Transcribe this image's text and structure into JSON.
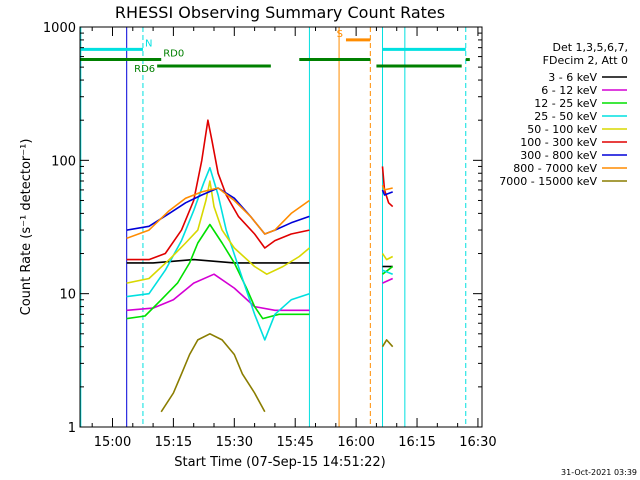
{
  "chart_data": {
    "type": "line",
    "title": "RHESSI Observing Summary Count Rates",
    "xlabel": "Start Time (07-Sep-15 14:51:22)",
    "ylabel": "Count Rate (s⁻¹ detector⁻¹)",
    "yscale": "log",
    "ylim": [
      1,
      1000
    ],
    "y_ticks": [
      {
        "value": 1,
        "label": "1"
      },
      {
        "value": 10,
        "label": "10"
      },
      {
        "value": 100,
        "label": "100"
      },
      {
        "value": 1000,
        "label": "1000"
      }
    ],
    "x_range_minutes": [
      -8,
      91
    ],
    "x_ticks": [
      {
        "minute": 0,
        "label": "15:00"
      },
      {
        "minute": 15,
        "label": "15:15"
      },
      {
        "minute": 30,
        "label": "15:30"
      },
      {
        "minute": 45,
        "label": "15:45"
      },
      {
        "minute": 60,
        "label": "16:00"
      },
      {
        "minute": 75,
        "label": "16:15"
      },
      {
        "minute": 90,
        "label": "16:30"
      }
    ],
    "legend_header": [
      "Det 1,3,5,6,7,",
      "FDecim 2, Att 0"
    ],
    "series": [
      {
        "name": "3 - 6 keV",
        "color": "#000000",
        "segments": [
          {
            "t": [
              3.5,
              10,
              20,
              30,
              40,
              48.5
            ],
            "v": [
              17,
              17,
              18,
              17,
              17,
              17
            ]
          },
          {
            "t": [
              66.5,
              69
            ],
            "v": [
              16,
              16
            ]
          }
        ]
      },
      {
        "name": "6 - 12 keV",
        "color": "#d400d4",
        "segments": [
          {
            "t": [
              3.5,
              10,
              15,
              20,
              25,
              30,
              35,
              40,
              48.5
            ],
            "v": [
              7.5,
              7.8,
              9,
              12,
              14,
              11,
              8,
              7.5,
              7.5
            ]
          },
          {
            "t": [
              66.5,
              69
            ],
            "v": [
              12,
              13
            ]
          }
        ]
      },
      {
        "name": "12 - 25 keV",
        "color": "#00e000",
        "segments": [
          {
            "t": [
              3.5,
              8,
              12,
              16,
              19,
              21,
              24,
              27,
              30,
              33,
              35,
              37,
              41,
              45,
              48.5
            ],
            "v": [
              6.5,
              6.8,
              9,
              12,
              17,
              24,
              33,
              24,
              17,
              11,
              8,
              6.5,
              7,
              7,
              7
            ]
          },
          {
            "t": [
              66.5,
              69
            ],
            "v": [
              14,
              16
            ]
          }
        ]
      },
      {
        "name": "25 - 50 keV",
        "color": "#00e0e0",
        "segments": [
          {
            "t": [
              3.5,
              9,
              13,
              17,
              20,
              22.5,
              24,
              26,
              28,
              32,
              35,
              37.5,
              40,
              44,
              48.5
            ],
            "v": [
              9.5,
              10,
              15,
              25,
              42,
              68,
              88,
              55,
              30,
              13,
              7,
              4.5,
              7,
              9,
              10
            ]
          },
          {
            "t": [
              66.5,
              69
            ],
            "v": [
              15,
              14
            ]
          }
        ]
      },
      {
        "name": "50 - 100 keV",
        "color": "#d8d800",
        "segments": [
          {
            "t": [
              3.5,
              9,
              14,
              18,
              21,
              23,
              24,
              25,
              27,
              30,
              35,
              38,
              42,
              46,
              48.5
            ],
            "v": [
              12,
              13,
              18,
              24,
              30,
              50,
              70,
              45,
              30,
              22,
              16,
              14,
              16,
              19,
              22
            ]
          },
          {
            "t": [
              66.5,
              67.5,
              69
            ],
            "v": [
              20,
              18,
              19
            ]
          }
        ]
      },
      {
        "name": "100 - 300 keV",
        "color": "#e00000",
        "segments": [
          {
            "t": [
              3.5,
              9,
              13,
              17,
              20,
              22,
              23.5,
              24.5,
              26,
              28,
              31,
              35,
              37.5,
              40,
              44,
              48.5
            ],
            "v": [
              18,
              18,
              20,
              30,
              50,
              100,
              200,
              140,
              80,
              55,
              38,
              28,
              22,
              25,
              28,
              30
            ]
          },
          {
            "t": [
              66.5,
              67,
              68,
              69
            ],
            "v": [
              90,
              60,
              48,
              45
            ]
          }
        ]
      },
      {
        "name": "300 - 800 keV",
        "color": "#0000d8",
        "segments": [
          {
            "t": [
              3.5,
              9,
              14,
              18,
              22,
              26,
              30,
              34,
              37.5,
              40,
              44,
              48.5
            ],
            "v": [
              30,
              32,
              40,
              48,
              55,
              62,
              52,
              38,
              28,
              30,
              34,
              38
            ]
          },
          {
            "t": [
              66.5,
              67,
              69
            ],
            "v": [
              60,
              55,
              58
            ]
          }
        ]
      },
      {
        "name": "800 - 7000 keV",
        "color": "#ff8c00",
        "segments": [
          {
            "t": [
              3.5,
              9,
              14,
              18,
              22,
              26,
              30,
              34,
              37.5,
              40,
              44,
              48.5
            ],
            "v": [
              26,
              30,
              42,
              52,
              58,
              62,
              50,
              38,
              28,
              30,
              40,
              50
            ]
          },
          {
            "t": [
              66.5,
              67,
              69
            ],
            "v": [
              65,
              60,
              62
            ]
          }
        ]
      },
      {
        "name": "7000 - 15000 keV",
        "color": "#8a7d00",
        "segments": [
          {
            "t": [
              12,
              15,
              17,
              19,
              21,
              24,
              27,
              30,
              32,
              35,
              37.5
            ],
            "v": [
              1.3,
              1.8,
              2.5,
              3.5,
              4.5,
              5,
              4.5,
              3.5,
              2.5,
              1.8,
              1.3
            ]
          },
          {
            "t": [
              66.5,
              67.5,
              69
            ],
            "v": [
              4,
              4.5,
              4
            ]
          }
        ]
      }
    ],
    "annotations": {
      "vlines": [
        {
          "minute": -7.8,
          "color": "#00e0e0",
          "style": "solid"
        },
        {
          "minute": 3.5,
          "color": "#0000d8",
          "style": "solid"
        },
        {
          "minute": 7.5,
          "color": "#00e0e0",
          "style": "dashed"
        },
        {
          "minute": 48.5,
          "color": "#00e0e0",
          "style": "solid"
        },
        {
          "minute": 55.8,
          "color": "#ff8c00",
          "style": "solid"
        },
        {
          "minute": 63.5,
          "color": "#ff8c00",
          "style": "dashed"
        },
        {
          "minute": 66.5,
          "color": "#00e0e0",
          "style": "solid"
        },
        {
          "minute": 72,
          "color": "#00e0e0",
          "style": "solid"
        },
        {
          "minute": 87,
          "color": "#00e0e0",
          "style": "dashed"
        }
      ],
      "bars": [
        {
          "label": "N",
          "color": "#00e0e0",
          "level": 680,
          "spans": [
            [
              -8,
              7.5
            ],
            [
              66.5,
              87
            ]
          ]
        },
        {
          "label": "S",
          "color": "#ff8c00",
          "level": 800,
          "spans": [
            [
              57.5,
              63.5
            ]
          ]
        },
        {
          "label": "RD0",
          "color": "#008000",
          "level": 570,
          "spans": [
            [
              -8,
              12
            ],
            [
              46,
              63.5
            ],
            [
              87,
              88
            ]
          ]
        },
        {
          "label": "RD6",
          "color": "#008000",
          "level": 510,
          "spans": [
            [
              11,
              39
            ],
            [
              65,
              86
            ]
          ]
        }
      ]
    },
    "timestamp": "31-Oct-2021 03:39"
  }
}
